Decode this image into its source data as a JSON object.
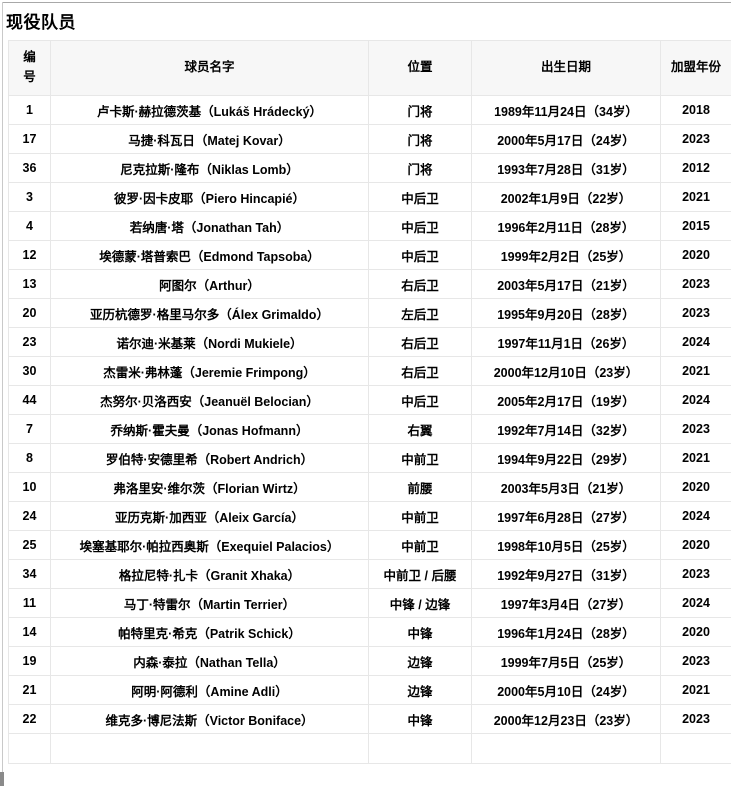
{
  "title": "现役队员",
  "table": {
    "headers": [
      "编号",
      "球员名字",
      "位置",
      "出生日期",
      "加盟年份"
    ],
    "rows": [
      {
        "no": "1",
        "name": "卢卡斯·赫拉德茨基（Lukáš Hrádecký）",
        "pos": "门将",
        "birth": "1989年11月24日（34岁）",
        "year": "2018"
      },
      {
        "no": "17",
        "name": "马捷·科瓦日（Matej Kovar）",
        "pos": "门将",
        "birth": "2000年5月17日（24岁）",
        "year": "2023"
      },
      {
        "no": "36",
        "name": "尼克拉斯·隆布（Niklas Lomb）",
        "pos": "门将",
        "birth": "1993年7月28日（31岁）",
        "year": "2012"
      },
      {
        "no": "3",
        "name": "彼罗·因卡皮耶（Piero Hincapié）",
        "pos": "中后卫",
        "birth": "2002年1月9日（22岁）",
        "year": "2021"
      },
      {
        "no": "4",
        "name": "若纳唐·塔（Jonathan Tah）",
        "pos": "中后卫",
        "birth": "1996年2月11日（28岁）",
        "year": "2015"
      },
      {
        "no": "12",
        "name": "埃德蒙·塔普索巴（Edmond Tapsoba）",
        "pos": "中后卫",
        "birth": "1999年2月2日（25岁）",
        "year": "2020"
      },
      {
        "no": "13",
        "name": "阿图尔（Arthur）",
        "pos": "右后卫",
        "birth": "2003年5月17日（21岁）",
        "year": "2023"
      },
      {
        "no": "20",
        "name": "亚历杭德罗·格里马尔多（Álex Grimaldo）",
        "pos": "左后卫",
        "birth": "1995年9月20日（28岁）",
        "year": "2023"
      },
      {
        "no": "23",
        "name": "诺尔迪·米基莱（Nordi Mukiele）",
        "pos": "右后卫",
        "birth": "1997年11月1日（26岁）",
        "year": "2024"
      },
      {
        "no": "30",
        "name": "杰雷米·弗林蓬（Jeremie Frimpong）",
        "pos": "右后卫",
        "birth": "2000年12月10日（23岁）",
        "year": "2021"
      },
      {
        "no": "44",
        "name": "杰努尔·贝洛西安（Jeanuël Belocian）",
        "pos": "中后卫",
        "birth": "2005年2月17日（19岁）",
        "year": "2024"
      },
      {
        "no": "7",
        "name": "乔纳斯·霍夫曼（Jonas Hofmann）",
        "pos": "右翼",
        "birth": "1992年7月14日（32岁）",
        "year": "2023"
      },
      {
        "no": "8",
        "name": "罗伯特·安德里希（Robert Andrich）",
        "pos": "中前卫",
        "birth": "1994年9月22日（29岁）",
        "year": "2021"
      },
      {
        "no": "10",
        "name": "弗洛里安·维尔茨（Florian Wirtz）",
        "pos": "前腰",
        "birth": "2003年5月3日（21岁）",
        "year": "2020"
      },
      {
        "no": "24",
        "name": "亚历克斯·加西亚（Aleix García）",
        "pos": "中前卫",
        "birth": "1997年6月28日（27岁）",
        "year": "2024"
      },
      {
        "no": "25",
        "name": "埃塞基耶尔·帕拉西奥斯（Exequiel Palacios）",
        "pos": "中前卫",
        "birth": "1998年10月5日（25岁）",
        "year": "2020"
      },
      {
        "no": "34",
        "name": "格拉尼特·扎卡（Granit Xhaka）",
        "pos": "中前卫 / 后腰",
        "birth": "1992年9月27日（31岁）",
        "year": "2023"
      },
      {
        "no": "11",
        "name": "马丁·特雷尔（Martin Terrier）",
        "pos": "中锋 / 边锋",
        "birth": "1997年3月4日（27岁）",
        "year": "2024"
      },
      {
        "no": "14",
        "name": "帕特里克·希克（Patrik Schick）",
        "pos": "中锋",
        "birth": "1996年1月24日（28岁）",
        "year": "2020"
      },
      {
        "no": "19",
        "name": "内森·泰拉（Nathan Tella）",
        "pos": "边锋",
        "birth": "1999年7月5日（25岁）",
        "year": "2023"
      },
      {
        "no": "21",
        "name": "阿明·阿德利（Amine Adli）",
        "pos": "边锋",
        "birth": "2000年5月10日（24岁）",
        "year": "2021"
      },
      {
        "no": "22",
        "name": "维克多·博尼法斯（Victor Boniface）",
        "pos": "中锋",
        "birth": "2000年12月23日（23岁）",
        "year": "2023"
      },
      {
        "no": "",
        "name": "",
        "pos": "",
        "birth": "",
        "year": ""
      }
    ]
  }
}
